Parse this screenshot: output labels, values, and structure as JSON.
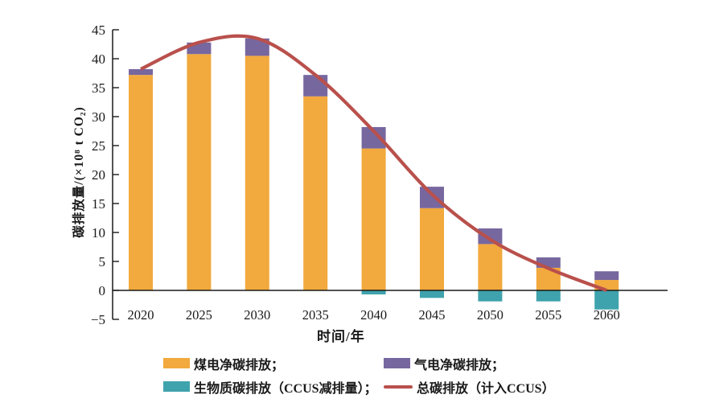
{
  "figure": {
    "background": "#ffffff",
    "axis_color": "#1a1a1a"
  },
  "chart_data": {
    "type": "bar",
    "stacked": true,
    "grid": false,
    "legend_position": "bottom",
    "xlabel": "时间/年",
    "ylabel": "碳排放量/(×10⁸ t CO₂)",
    "ylim": [
      -5,
      45
    ],
    "ytick_step": 5,
    "categories": [
      "2020",
      "2025",
      "2030",
      "2035",
      "2040",
      "2045",
      "2050",
      "2055",
      "2060"
    ],
    "series": [
      {
        "name": "煤电净碳排放",
        "type": "bar",
        "color": "#F2A93D",
        "values": [
          37.2,
          40.8,
          40.5,
          33.5,
          24.5,
          14.2,
          8.0,
          3.9,
          1.8
        ]
      },
      {
        "name": "气电净碳排放",
        "type": "bar",
        "color": "#77679F",
        "values": [
          1.0,
          2.0,
          3.0,
          3.7,
          3.7,
          3.7,
          2.7,
          1.8,
          1.5
        ]
      },
      {
        "name": "生物质碳排放（CCUS减排量）",
        "type": "bar",
        "color": "#3FA3AD",
        "values": [
          0,
          0,
          0,
          0,
          -0.7,
          -1.3,
          -1.9,
          -1.9,
          -3.3
        ]
      },
      {
        "name": "总碳排放（计入CCUS）",
        "type": "line",
        "color": "#B9504C",
        "values": [
          38.2,
          42.8,
          43.5,
          37.2,
          27.5,
          16.6,
          8.8,
          3.8,
          0
        ]
      }
    ]
  },
  "legend": {
    "items": [
      {
        "label": "煤电净碳排放；",
        "swatch": "rect",
        "color": "#F2A93D"
      },
      {
        "label": "气电净碳排放；",
        "swatch": "rect",
        "color": "#77679F"
      },
      {
        "label": "生物质碳排放（CCUS减排量）；",
        "swatch": "rect",
        "color": "#3FA3AD"
      },
      {
        "label": "总碳排放（计入CCUS）",
        "swatch": "line",
        "color": "#B9504C"
      }
    ]
  }
}
